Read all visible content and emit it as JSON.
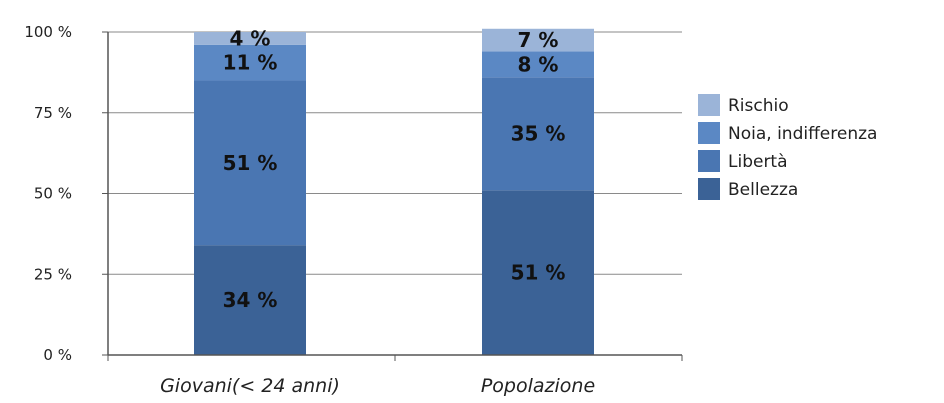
{
  "chart_data": {
    "type": "bar",
    "stacked": true,
    "categories": [
      "Giovani(< 24 anni)",
      "Popolazione"
    ],
    "series": [
      {
        "name": "Bellezza",
        "color": "#3b6296",
        "values": [
          34,
          51
        ],
        "labels": [
          "34 %",
          "51 %"
        ]
      },
      {
        "name": "Libertà",
        "color": "#4a76b2",
        "values": [
          51,
          35
        ],
        "labels": [
          "51 %",
          "35 %"
        ]
      },
      {
        "name": "Noia, indifferenza",
        "color": "#5b88c4",
        "values": [
          11,
          8
        ],
        "labels": [
          "11 %",
          "8 %"
        ]
      },
      {
        "name": "Rischio",
        "color": "#9bb4d8",
        "values": [
          4,
          7
        ],
        "labels": [
          "4 %",
          "7 %"
        ]
      }
    ],
    "yticks": [
      "0 %",
      "25 %",
      "50 %",
      "75 %",
      "100 %"
    ],
    "ylim": [
      0,
      100
    ],
    "grid": true,
    "legend_position": "right"
  }
}
